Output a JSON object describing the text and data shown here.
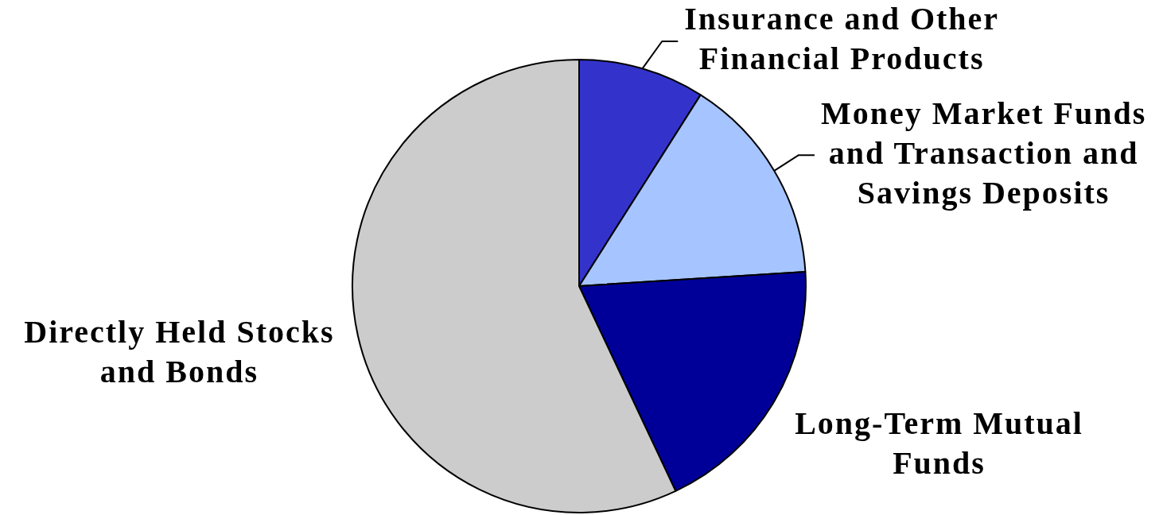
{
  "chart_data": {
    "type": "pie",
    "categories": [
      "Insurance and Other Financial Products",
      "Money Market Funds and Transaction and Savings Deposits",
      "Long-Term Mutual Funds",
      "Directly Held Stocks and Bonds"
    ],
    "values": [
      9,
      15,
      19,
      57
    ],
    "colors": [
      "#3333cc",
      "#a6c4ff",
      "#000099",
      "#cccccc"
    ]
  }
}
